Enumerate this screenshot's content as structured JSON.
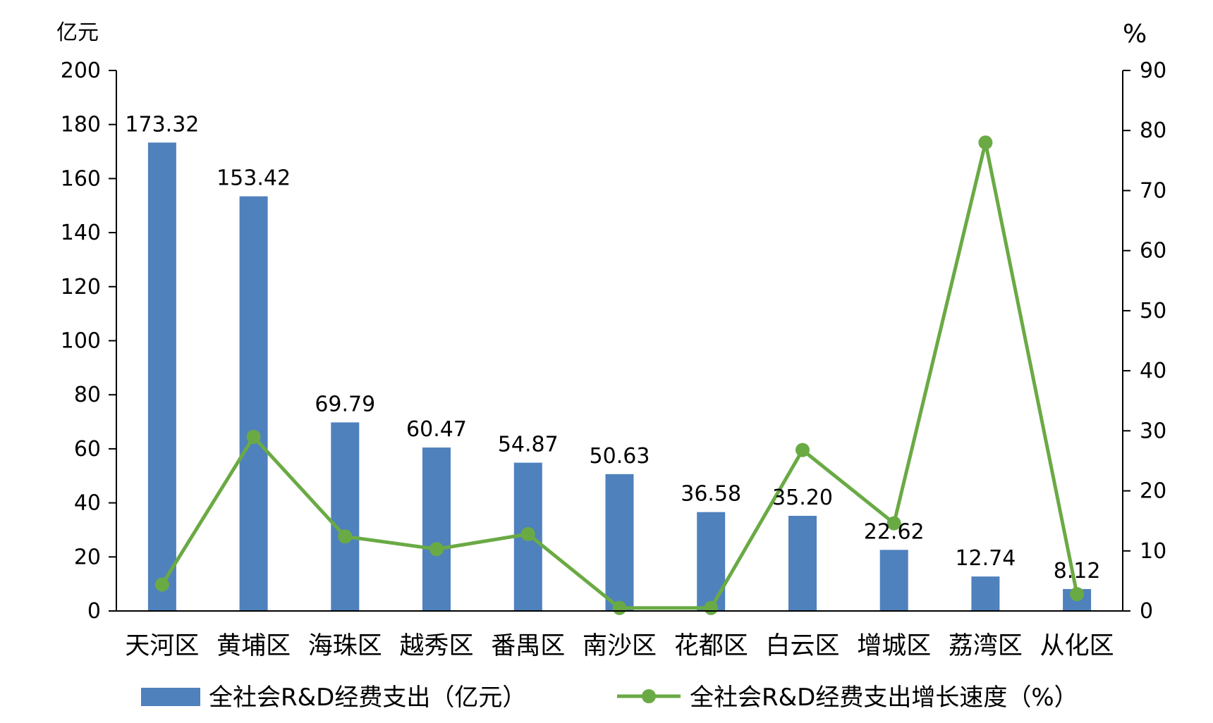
{
  "chart_data": {
    "type": "bar",
    "categories": [
      "天河区",
      "黄埔区",
      "海珠区",
      "越秀区",
      "番禺区",
      "南沙区",
      "花都区",
      "白云区",
      "增城区",
      "荔湾区",
      "从化区"
    ],
    "series": [
      {
        "name": "全社会R&D经费支出（亿元）",
        "type": "bar",
        "axis": "left",
        "color": "#4F81BD",
        "values": [
          173.32,
          153.42,
          69.79,
          60.47,
          54.87,
          50.63,
          36.58,
          35.2,
          22.62,
          12.74,
          8.12
        ],
        "labels": [
          "173.32",
          "153.42",
          "69.79",
          "60.47",
          "54.87",
          "50.63",
          "36.58",
          "35.20",
          "22.62",
          "12.74",
          "8.12"
        ]
      },
      {
        "name": "全社会R&D经费支出增长速度（%）",
        "type": "line",
        "axis": "right",
        "color": "#6AAA44",
        "values": [
          4.4,
          29.0,
          12.4,
          10.3,
          12.8,
          0.5,
          0.5,
          26.8,
          14.6,
          78.0,
          2.8
        ]
      }
    ],
    "y_left": {
      "label": "亿元",
      "min": 0,
      "max": 200,
      "ticks": [
        "0",
        "20",
        "40",
        "60",
        "80",
        "100",
        "120",
        "140",
        "160",
        "180",
        "200"
      ]
    },
    "y_right": {
      "label": "%",
      "min": 0,
      "max": 90,
      "ticks": [
        "0",
        "10",
        "20",
        "30",
        "40",
        "50",
        "60",
        "70",
        "80",
        "90"
      ]
    },
    "grid": false,
    "legend_position": "bottom"
  }
}
